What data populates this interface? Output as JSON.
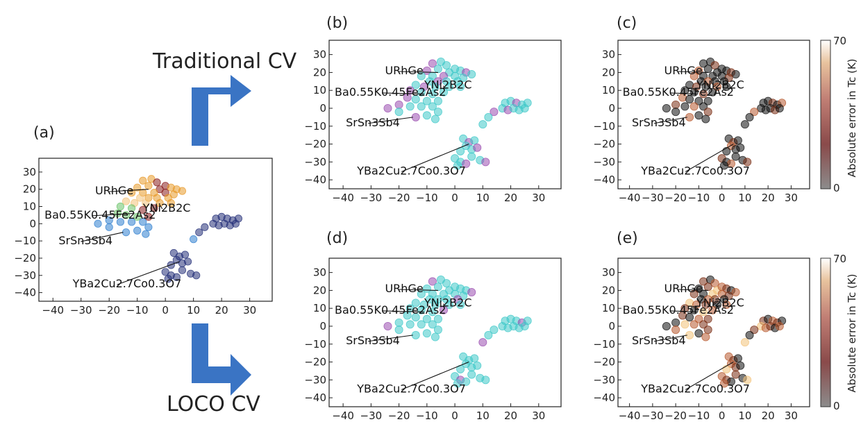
{
  "labels": {
    "traditional": "Traditional CV",
    "loco": "LOCO CV"
  },
  "colors": {
    "arrow": "#3a74c4",
    "cyan": "#3ec8c8",
    "purple": "#9b4fb0",
    "navy": "#242f78",
    "orange": "#e89a2a",
    "lightorange": "#f2c27a",
    "green": "#6cc36a",
    "blue": "#2f7fd0",
    "darkred": "#8a1f1f",
    "black": "#101010",
    "brown": "#7a2e14",
    "rust": "#b85a30"
  },
  "colorbar": {
    "label": "Absolute error in Tc (K)",
    "min": 0,
    "max": 70,
    "ticks": [
      0,
      70
    ]
  },
  "chart_data": [
    {
      "id": "a",
      "panel_label": "(a)",
      "type": "scatter",
      "xlim": [
        -45,
        38
      ],
      "ylim": [
        -45,
        38
      ],
      "xticks": [
        -40,
        -30,
        -20,
        -10,
        0,
        10,
        20,
        30
      ],
      "yticks": [
        -40,
        -30,
        -20,
        -10,
        0,
        10,
        20,
        30
      ],
      "annotations": [
        {
          "text": "URhGe",
          "x": -25,
          "y": 17,
          "target": [
            -6,
            20
          ]
        },
        {
          "text": "YNi2B2C",
          "x": -8,
          "y": 7,
          "target": [
            -2,
            11
          ]
        },
        {
          "text": "Ba0.55K0.45Fe2As2",
          "x": -43,
          "y": 3,
          "target": [
            -11,
            6
          ]
        },
        {
          "text": "SrSn3Sb4",
          "x": -38,
          "y": -12,
          "target": [
            -15,
            -5
          ]
        },
        {
          "text": "YBa2Cu2.7Co0.3O7",
          "x": -33,
          "y": -37,
          "target": [
            5,
            -22
          ]
        }
      ]
    },
    {
      "id": "b",
      "panel_label": "(b)",
      "type": "scatter",
      "xlim": [
        -45,
        38
      ],
      "ylim": [
        -45,
        38
      ],
      "xticks": [
        -40,
        -30,
        -20,
        -10,
        0,
        10,
        20,
        30
      ],
      "yticks": [
        -40,
        -30,
        -20,
        -10,
        0,
        10,
        20,
        30
      ],
      "annotations": [
        {
          "text": "URhGe",
          "x": -25,
          "y": 19,
          "target": [
            -6,
            20
          ]
        },
        {
          "text": "YNi2B2C",
          "x": -11,
          "y": 11,
          "target": [
            -4,
            12
          ]
        },
        {
          "text": "Ba0.55K0.45Fe2As2",
          "x": -43,
          "y": 7,
          "target": [
            -11,
            8
          ]
        },
        {
          "text": "SrSn3Sb4",
          "x": -39,
          "y": -10,
          "target": [
            -15,
            -5
          ]
        },
        {
          "text": "YBa2Cu2.7Co0.3O7",
          "x": -35,
          "y": -37,
          "target": [
            5,
            -20
          ]
        }
      ]
    },
    {
      "id": "c",
      "panel_label": "(c)",
      "type": "scatter",
      "xlim": [
        -45,
        38
      ],
      "ylim": [
        -45,
        38
      ],
      "xticks": [
        -40,
        -30,
        -20,
        -10,
        0,
        10,
        20,
        30
      ],
      "yticks": [
        -40,
        -30,
        -20,
        -10,
        0,
        10,
        20,
        30
      ],
      "annotations": [
        {
          "text": "URhGe",
          "x": -25,
          "y": 19,
          "target": [
            -6,
            20
          ]
        },
        {
          "text": "YNi2B2C",
          "x": -11,
          "y": 11,
          "target": [
            -4,
            12
          ]
        },
        {
          "text": "Ba0.55K0.45Fe2As2",
          "x": -43,
          "y": 7,
          "target": [
            -11,
            8
          ]
        },
        {
          "text": "SrSn3Sb4",
          "x": -39,
          "y": -10,
          "target": [
            -15,
            -5
          ]
        },
        {
          "text": "YBa2Cu2.7Co0.3O7",
          "x": -35,
          "y": -37,
          "target": [
            5,
            -20
          ]
        }
      ]
    },
    {
      "id": "d",
      "panel_label": "(d)",
      "type": "scatter",
      "xlim": [
        -45,
        38
      ],
      "ylim": [
        -45,
        38
      ],
      "xticks": [
        -40,
        -30,
        -20,
        -10,
        0,
        10,
        20,
        30
      ],
      "yticks": [
        -40,
        -30,
        -20,
        -10,
        0,
        10,
        20,
        30
      ],
      "annotations": [
        {
          "text": "URhGe",
          "x": -25,
          "y": 19,
          "target": [
            -6,
            20
          ]
        },
        {
          "text": "YNi2B2C",
          "x": -11,
          "y": 11,
          "target": [
            -4,
            12
          ]
        },
        {
          "text": "Ba0.55K0.45Fe2As2",
          "x": -43,
          "y": 7,
          "target": [
            -11,
            8
          ]
        },
        {
          "text": "SrSn3Sb4",
          "x": -39,
          "y": -10,
          "target": [
            -15,
            -5
          ]
        },
        {
          "text": "YBa2Cu2.7Co0.3O7",
          "x": -35,
          "y": -37,
          "target": [
            5,
            -20
          ]
        }
      ]
    },
    {
      "id": "e",
      "panel_label": "(e)",
      "type": "scatter",
      "xlim": [
        -45,
        38
      ],
      "ylim": [
        -45,
        38
      ],
      "xticks": [
        -40,
        -30,
        -20,
        -10,
        0,
        10,
        20,
        30
      ],
      "yticks": [
        -40,
        -30,
        -20,
        -10,
        0,
        10,
        20,
        30
      ],
      "annotations": [
        {
          "text": "URhGe",
          "x": -25,
          "y": 19,
          "target": [
            -6,
            20
          ]
        },
        {
          "text": "YNi2B2C",
          "x": -11,
          "y": 11,
          "target": [
            -4,
            12
          ]
        },
        {
          "text": "Ba0.55K0.45Fe2As2",
          "x": -43,
          "y": 7,
          "target": [
            -11,
            8
          ]
        },
        {
          "text": "SrSn3Sb4",
          "x": -39,
          "y": -10,
          "target": [
            -15,
            -5
          ]
        },
        {
          "text": "YBa2Cu2.7Co0.3O7",
          "x": -35,
          "y": -37,
          "target": [
            5,
            -20
          ]
        }
      ]
    }
  ]
}
